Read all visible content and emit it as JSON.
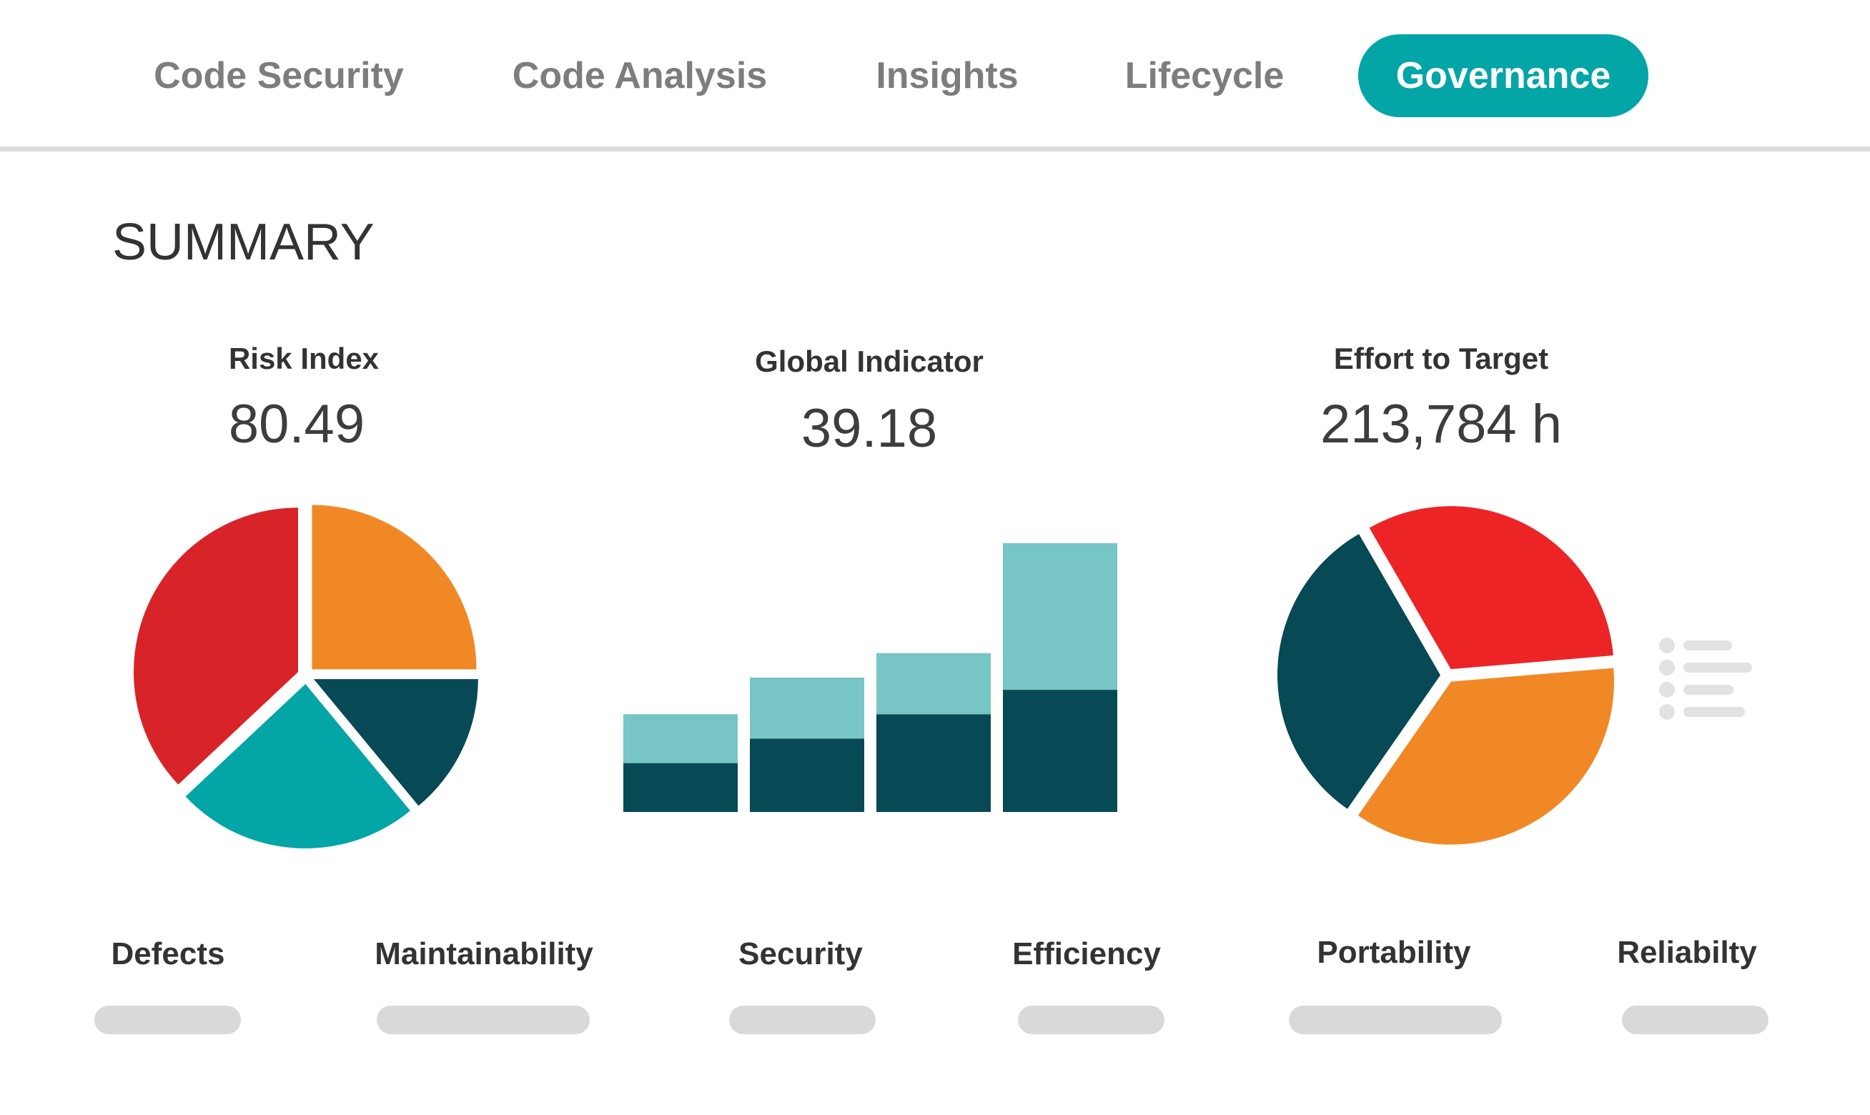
{
  "tabs": [
    {
      "label": "Code Security",
      "active": false
    },
    {
      "label": "Code Analysis",
      "active": false
    },
    {
      "label": "Insights",
      "active": false
    },
    {
      "label": "Lifecycle",
      "active": false
    },
    {
      "label": "Governance",
      "active": true
    }
  ],
  "summary": {
    "title": "SUMMARY"
  },
  "metrics": [
    {
      "title": "Risk Index",
      "value": "80.49"
    },
    {
      "title": "Global Indicator",
      "value": "39.18"
    },
    {
      "title": "Effort to Target",
      "value": "213,784 h"
    }
  ],
  "categories": [
    "Defects",
    "Maintainability",
    "Security",
    "Efficiency",
    "Portability",
    "Reliabilty"
  ],
  "colors": {
    "accent": "#04a5a6",
    "red": "#d82428",
    "orange": "#f18826",
    "teal": "#04a5a6",
    "dark_teal": "#074954",
    "light_teal": "#77c5c4",
    "bright_red": "#ec2426",
    "placeholder": "#d9d9d9"
  },
  "chart_data": [
    {
      "type": "pie",
      "slices": [
        {
          "value": 25,
          "color": "#f18826"
        },
        {
          "value": 14,
          "color": "#074954"
        },
        {
          "value": 24,
          "color": "#04a5a6"
        },
        {
          "value": 37,
          "color": "#d82428"
        }
      ]
    },
    {
      "type": "bar",
      "stacked": true,
      "categories": [
        "",
        "",
        "",
        ""
      ],
      "series": [
        {
          "values": [
            20,
            30,
            40,
            50
          ],
          "color": "#074954"
        },
        {
          "values": [
            20,
            25,
            25,
            60
          ],
          "color": "#77c5c4"
        }
      ],
      "ylim": [
        0,
        110
      ]
    },
    {
      "type": "pie",
      "slices": [
        {
          "value": 32,
          "color": "#ec2426"
        },
        {
          "value": 36,
          "color": "#f18826"
        },
        {
          "value": 32,
          "color": "#074954"
        }
      ]
    }
  ]
}
